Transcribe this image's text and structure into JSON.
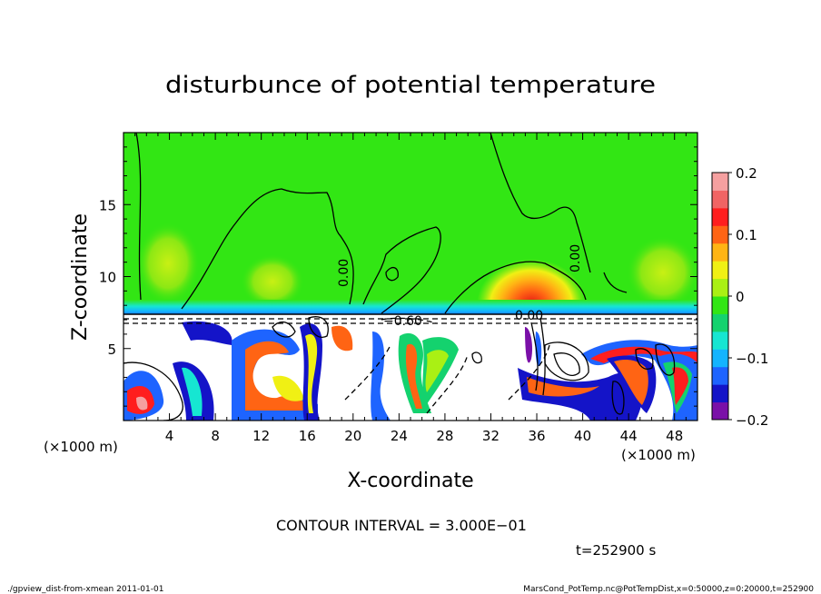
{
  "chart_data": {
    "type": "heatmap",
    "title": "disturbunce of potential temperature",
    "xlabel": "X-coordinate",
    "ylabel": "Z-coordinate",
    "x_unit_left": "(×1000 m)",
    "x_unit_right": "(×1000 m)",
    "xlim": [
      0,
      50
    ],
    "ylim": [
      0,
      20
    ],
    "x_ticks": [
      4,
      8,
      12,
      16,
      20,
      24,
      28,
      32,
      36,
      40,
      44,
      48
    ],
    "y_ticks": [
      5,
      10,
      15
    ],
    "colorbar": {
      "range": [
        -0.2,
        0.2
      ],
      "tick_labels": [
        "0.2",
        "0.1",
        "0",
        "−0.1",
        "−0.2"
      ],
      "tick_values": [
        0.2,
        0.1,
        0,
        -0.1,
        -0.2
      ],
      "colors": [
        "#7a10a8",
        "#1414c8",
        "#1e64ff",
        "#14b4ff",
        "#16e6d2",
        "#14d26e",
        "#32e614",
        "#aaf014",
        "#f0f014",
        "#ffb414",
        "#ff6414",
        "#ff1e1e",
        "#f06464",
        "#f5a0a0"
      ]
    },
    "contour_labels": [
      "0.00",
      "−0.60",
      "0.00",
      "0.00"
    ],
    "contour_interval_text": "CONTOUR INTERVAL = 3.000E−01",
    "time_text": "t=252900 s",
    "footer_left": "./gpview_dist-from-xmean  2011-01-01",
    "footer_right": "MarsCond_PotTemp.nc@PotTempDist,x=0:50000,z=0:20000,t=252900"
  },
  "colors": {
    "upper_field": "#32e614",
    "lower_field": "#ffffff",
    "warm_anomaly": "#ff1e1e",
    "cold_anomaly": "#1414c8"
  }
}
